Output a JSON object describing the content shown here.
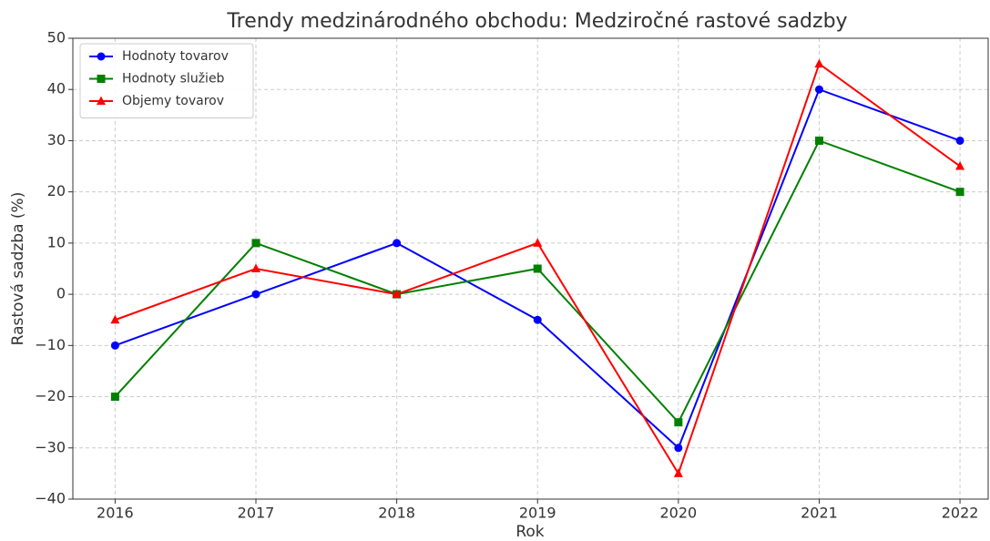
{
  "chart_data": {
    "type": "line",
    "title": "Trendy medzinárodného obchodu: Medziročné rastové sadzby",
    "x_label": "Rok",
    "y_label": "Rastová sadzba (%)",
    "x": [
      2016,
      2017,
      2018,
      2019,
      2020,
      2021,
      2022
    ],
    "series": [
      {
        "name": "Hodnoty tovarov",
        "color": "#0000ff",
        "marker": "circle",
        "values": [
          -10,
          0,
          10,
          -5,
          -30,
          40,
          30
        ]
      },
      {
        "name": "Hodnoty služieb",
        "color": "#008000",
        "marker": "square",
        "values": [
          -20,
          10,
          0,
          5,
          -25,
          30,
          20
        ]
      },
      {
        "name": "Objemy tovarov",
        "color": "#ff0000",
        "marker": "triangle",
        "values": [
          -5,
          5,
          0,
          10,
          -35,
          45,
          25
        ]
      }
    ],
    "xlim": [
      2015.7,
      2022.2
    ],
    "xticks": [
      2016,
      2017,
      2018,
      2019,
      2020,
      2021,
      2022
    ],
    "ylim": [
      -40,
      50
    ],
    "yticks": [
      {
        "value": -40,
        "label": "−40"
      },
      {
        "value": -30,
        "label": "−30"
      },
      {
        "value": -20,
        "label": "−20"
      },
      {
        "value": -10,
        "label": "−10"
      },
      0,
      10,
      20,
      30,
      40,
      50
    ],
    "grid": true,
    "legend": "upper left"
  }
}
